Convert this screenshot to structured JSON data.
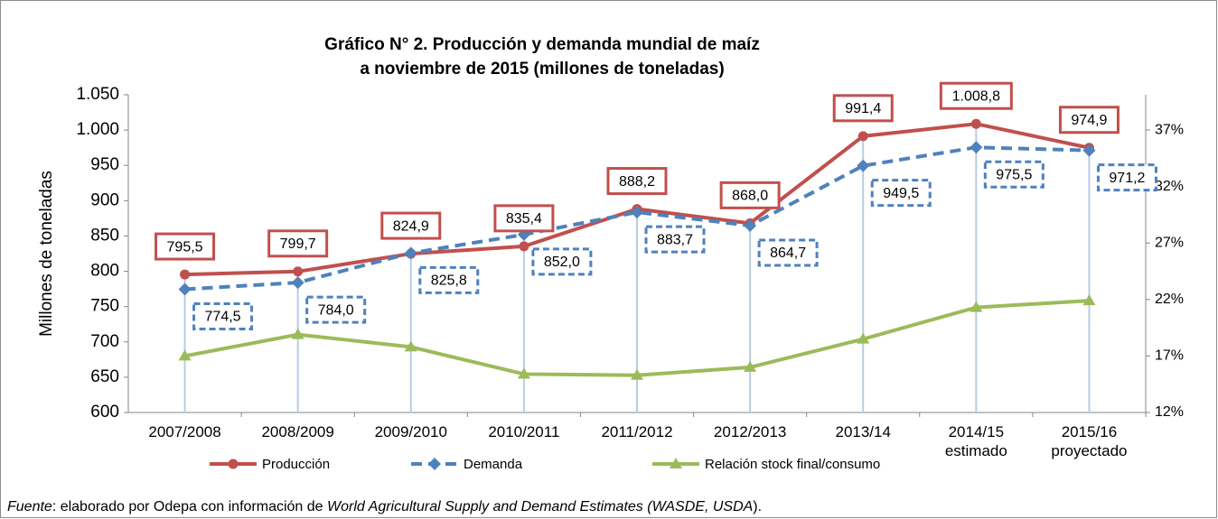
{
  "chart_data": {
    "type": "line",
    "title": [
      "Gráfico N° 2. Producción y demanda mundial de maíz",
      "a noviembre de 2015  (millones de toneladas)"
    ],
    "y_label": "Millones de toneladas",
    "categories": [
      "2007/2008",
      "2008/2009",
      "2009/2010",
      "2010/2011",
      "2011/2012",
      "2012/2013",
      "2013/14",
      "2014/15 estimado",
      "2015/16 proyectado"
    ],
    "series": [
      {
        "name": "Producción",
        "color": "#c0504d",
        "marker": "circle",
        "dashed": false,
        "label_box": true,
        "values": [
          795.5,
          799.7,
          824.9,
          835.4,
          888.2,
          868.0,
          991.4,
          1008.8,
          974.9
        ],
        "value_labels": [
          "795,5",
          "799,7",
          "824,9",
          "835,4",
          "888,2",
          "868,0",
          "991,4",
          "1.008,8",
          "974,9"
        ]
      },
      {
        "name": "Demanda",
        "color": "#4f81bd",
        "marker": "diamond",
        "dashed": true,
        "label_box": true,
        "values": [
          774.5,
          784.0,
          825.8,
          852.0,
          883.7,
          864.7,
          949.5,
          975.5,
          971.2
        ],
        "value_labels": [
          "774,5",
          "784,0",
          "825,8",
          "852,0",
          "883,7",
          "864,7",
          "949,5",
          "975,5",
          "971,2"
        ]
      },
      {
        "name": "Relación stock final/consumo",
        "color": "#9bbb59",
        "marker": "triangle",
        "dashed": false,
        "axis": "y2",
        "values": [
          17.0,
          18.9,
          17.8,
          15.4,
          15.3,
          16.0,
          18.5,
          21.3,
          21.9
        ]
      }
    ],
    "ylim": [
      600,
      1050
    ],
    "yticks": [
      600,
      650,
      700,
      750,
      800,
      850,
      900,
      950,
      {
        "value": 1000,
        "label": "1.000"
      },
      {
        "value": 1050,
        "label": "1.050"
      }
    ],
    "y2lim": [
      12,
      40.12
    ],
    "y2ticks": [
      {
        "value": 12,
        "label": "12%"
      },
      {
        "value": 17,
        "label": "17%"
      },
      {
        "value": 22,
        "label": "22%"
      },
      {
        "value": 27,
        "label": "27%"
      },
      {
        "value": 32,
        "label": "32%"
      },
      {
        "value": 37,
        "label": "37%"
      }
    ],
    "drop_lines": true,
    "legend": "bottom"
  },
  "source": [
    {
      "text": "Fuente",
      "italic": true
    },
    {
      "text": ": elaborado por Odepa con información de ",
      "italic": false
    },
    {
      "text": "World Agricultural Supply and Demand Estimates  (WASDE, USDA",
      "italic": true
    },
    {
      "text": ").",
      "italic": false
    }
  ]
}
